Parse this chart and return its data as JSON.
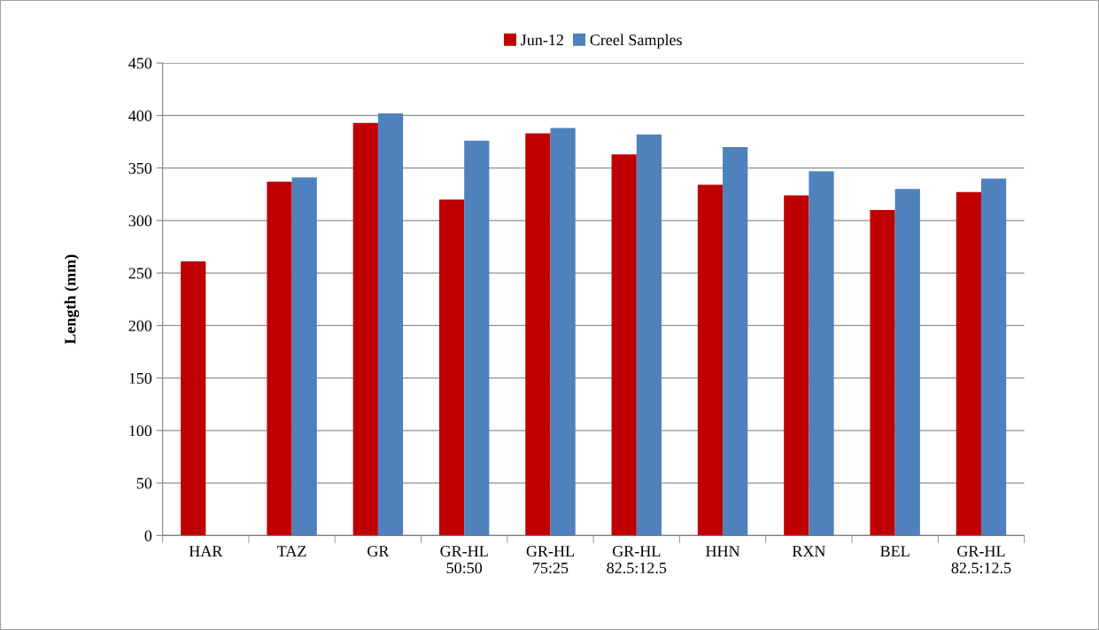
{
  "chart_data": {
    "type": "bar",
    "ylabel": "Length (mm)",
    "categories": [
      "HAR",
      "TAZ",
      "GR",
      "GR-HL\n50:50",
      "GR-HL\n75:25",
      "GR-HL\n82.5:12.5",
      "HHN",
      "RXN",
      "BEL",
      "GR-HL\n82.5:12.5"
    ],
    "series": [
      {
        "name": "Jun-12",
        "color": "#c00000",
        "values": [
          261,
          337,
          393,
          320,
          383,
          363,
          334,
          324,
          310,
          327
        ]
      },
      {
        "name": "Creel Samples",
        "color": "#4f81bd",
        "values": [
          null,
          341,
          402,
          376,
          388,
          382,
          370,
          347,
          330,
          340
        ]
      }
    ],
    "ylim": [
      0,
      450
    ],
    "yticks": [
      0,
      50,
      100,
      150,
      200,
      250,
      300,
      350,
      400,
      450
    ],
    "grid": "y",
    "legend": "top"
  }
}
